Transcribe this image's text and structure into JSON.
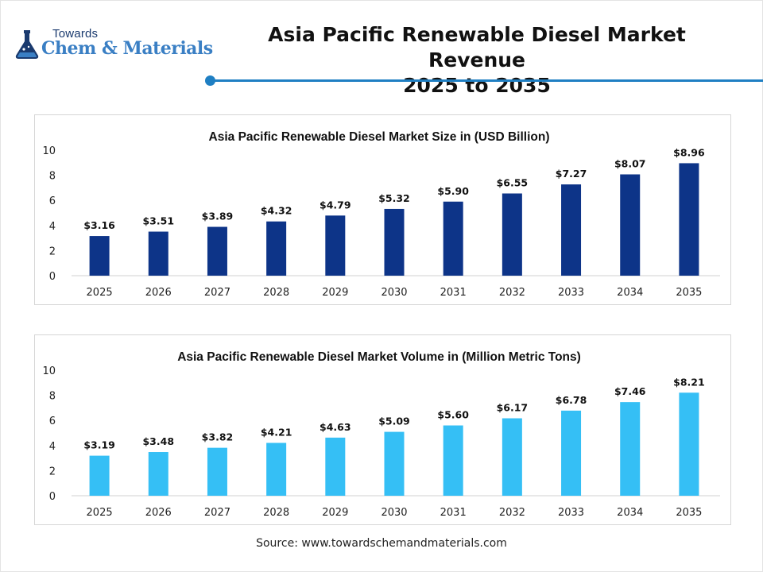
{
  "header": {
    "logo_small": "Towards",
    "logo_big": "Chem & Materials",
    "title_line1": "Asia Pacific Renewable Diesel Market Revenue",
    "title_line2": "2025 to 2035"
  },
  "source": "Source: www.towardschemandmaterials.com",
  "colors": {
    "accent": "#1f7fc3",
    "series1": "#0d3488",
    "series2": "#35bff5"
  },
  "chart_data": [
    {
      "type": "bar",
      "title": "Asia Pacific Renewable Diesel Market Size in (USD Billion)",
      "categories": [
        "2025",
        "2026",
        "2027",
        "2028",
        "2029",
        "2030",
        "2031",
        "2032",
        "2033",
        "2034",
        "2035"
      ],
      "values": [
        3.16,
        3.51,
        3.89,
        4.32,
        4.79,
        5.32,
        5.9,
        6.55,
        7.27,
        8.07,
        8.96
      ],
      "data_labels": [
        "$3.16",
        "$3.51",
        "$3.89",
        "$4.32",
        "$4.79",
        "$5.32",
        "$5.90",
        "$6.55",
        "$7.27",
        "$8.07",
        "$8.96"
      ],
      "yticks": [
        0,
        2,
        4,
        6,
        8,
        10
      ],
      "ylim": [
        0,
        10
      ],
      "color": "#0d3488",
      "grid": false
    },
    {
      "type": "bar",
      "title": "Asia Pacific Renewable Diesel Market Volume in (Million Metric Tons)",
      "categories": [
        "2025",
        "2026",
        "2027",
        "2028",
        "2029",
        "2030",
        "2031",
        "2032",
        "2033",
        "2034",
        "2035"
      ],
      "values": [
        3.19,
        3.48,
        3.82,
        4.21,
        4.63,
        5.09,
        5.6,
        6.17,
        6.78,
        7.46,
        8.21
      ],
      "data_labels": [
        "$3.19",
        "$3.48",
        "$3.82",
        "$4.21",
        "$4.63",
        "$5.09",
        "$5.60",
        "$6.17",
        "$6.78",
        "$7.46",
        "$8.21"
      ],
      "yticks": [
        0,
        2,
        4,
        6,
        8,
        10
      ],
      "ylim": [
        0,
        10
      ],
      "color": "#35bff5",
      "grid": false
    }
  ]
}
